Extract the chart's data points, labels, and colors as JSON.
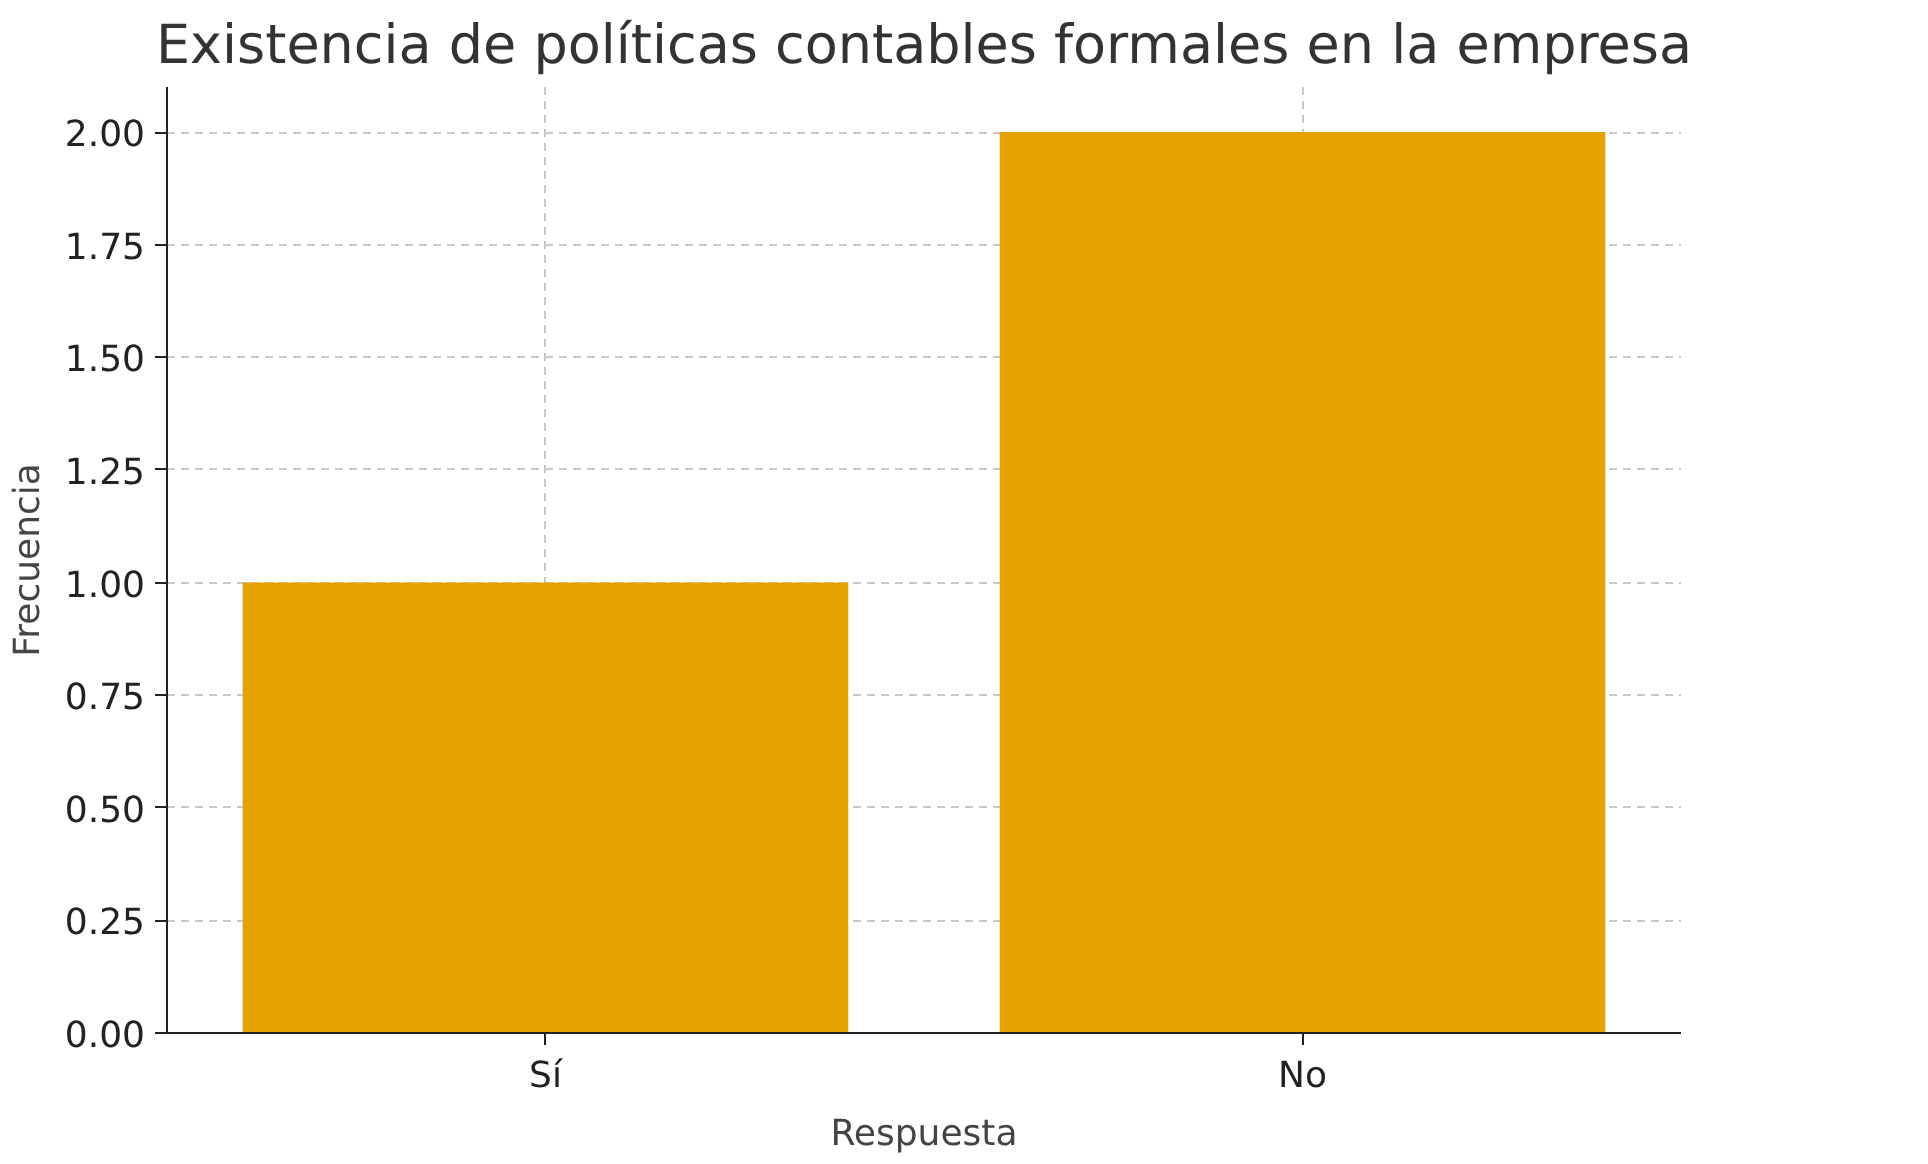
{
  "chart_data": {
    "type": "bar",
    "title": "Existencia de políticas contables formales en la empresa",
    "xlabel": "Respuesta",
    "ylabel": "Frecuencia",
    "categories": [
      "Sí",
      "No"
    ],
    "values": [
      1,
      2
    ],
    "color": "#e5a100",
    "ylim": [
      0,
      2.1
    ],
    "yticks": [
      {
        "value": 0,
        "label": "0.00"
      },
      {
        "value": 0.25,
        "label": "0.25"
      },
      {
        "value": 0.5,
        "label": "0.50"
      },
      {
        "value": 0.75,
        "label": "0.75"
      },
      {
        "value": 1,
        "label": "1.00"
      },
      {
        "value": 1.25,
        "label": "1.25"
      },
      {
        "value": 1.5,
        "label": "1.50"
      },
      {
        "value": 1.75,
        "label": "1.75"
      },
      {
        "value": 2,
        "label": "2.00"
      }
    ],
    "grid": true
  }
}
